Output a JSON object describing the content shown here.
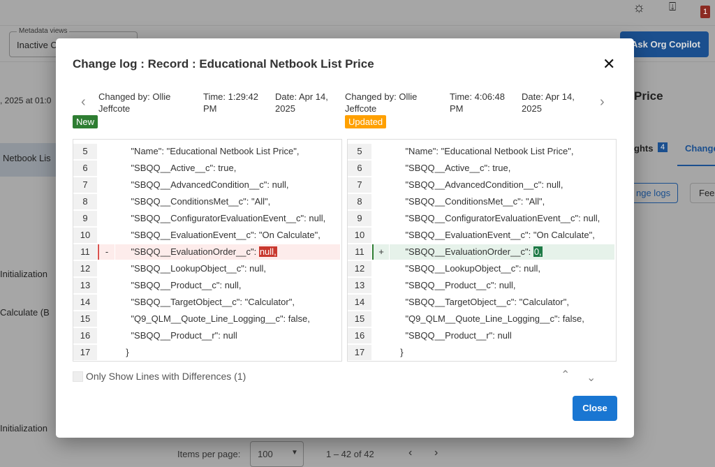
{
  "background": {
    "metadata_views_label": "Metadata views",
    "metadata_views_value": "Inactive C",
    "ask_copilot": "Ask Org Copilot",
    "notification_count": "1",
    "date_fragment": ", 2025 at 01:0",
    "left_rows": [
      "Netbook Lis",
      "Initialization",
      "Calculate (B",
      "Initialization"
    ],
    "right_title": "Price",
    "tab_insights": "ghts",
    "tab_insights_count": "4",
    "tab_change": "Change",
    "change_logs_btn": "nge logs",
    "feed_btn": "Fee",
    "items_per_page_label": "Items per page:",
    "items_per_page_value": "100",
    "range": "1 – 42 of 42"
  },
  "modal": {
    "title": "Change log : Record : Educational Netbook List Price",
    "left": {
      "changed_by": "Changed by: Ollie Jeffcote",
      "time": "Time: 1:29:42 PM",
      "date": "Date: Apr 14, 2025",
      "tag": "New",
      "tag_color": "#2e7d32"
    },
    "right": {
      "changed_by": "Changed by: Ollie Jeffcote",
      "time": "Time: 4:06:48 PM",
      "date": "Date: Apr 14, 2025",
      "tag": "Updated",
      "tag_color": "#ffa000"
    },
    "left_lines": [
      {
        "n": "5",
        "mk": "",
        "code": "    \"Name\": \"Educational Netbook List Price\","
      },
      {
        "n": "6",
        "mk": "",
        "code": "    \"SBQQ__Active__c\": true,"
      },
      {
        "n": "7",
        "mk": "",
        "code": "    \"SBQQ__AdvancedCondition__c\": null,"
      },
      {
        "n": "8",
        "mk": "",
        "code": "    \"SBQQ__ConditionsMet__c\": \"All\","
      },
      {
        "n": "9",
        "mk": "",
        "code": "    \"SBQQ__ConfiguratorEvaluationEvent__c\": null,"
      },
      {
        "n": "10",
        "mk": "",
        "code": "    \"SBQQ__EvaluationEvent__c\": \"On Calculate\","
      },
      {
        "n": "11",
        "mk": "-",
        "code": "    \"SBQQ__EvaluationOrder__c\": ",
        "hl": "null,"
      },
      {
        "n": "12",
        "mk": "",
        "code": "    \"SBQQ__LookupObject__c\": null,"
      },
      {
        "n": "13",
        "mk": "",
        "code": "    \"SBQQ__Product__c\": null,"
      },
      {
        "n": "14",
        "mk": "",
        "code": "    \"SBQQ__TargetObject__c\": \"Calculator\","
      },
      {
        "n": "15",
        "mk": "",
        "code": "    \"Q9_QLM__Quote_Line_Logging__c\": false,"
      },
      {
        "n": "16",
        "mk": "",
        "code": "    \"SBQQ__Product__r\": null"
      },
      {
        "n": "17",
        "mk": "",
        "code": "  }"
      }
    ],
    "right_lines": [
      {
        "n": "5",
        "mk": "",
        "code": "    \"Name\": \"Educational Netbook List Price\","
      },
      {
        "n": "6",
        "mk": "",
        "code": "    \"SBQQ__Active__c\": true,"
      },
      {
        "n": "7",
        "mk": "",
        "code": "    \"SBQQ__AdvancedCondition__c\": null,"
      },
      {
        "n": "8",
        "mk": "",
        "code": "    \"SBQQ__ConditionsMet__c\": \"All\","
      },
      {
        "n": "9",
        "mk": "",
        "code": "    \"SBQQ__ConfiguratorEvaluationEvent__c\": null,"
      },
      {
        "n": "10",
        "mk": "",
        "code": "    \"SBQQ__EvaluationEvent__c\": \"On Calculate\","
      },
      {
        "n": "11",
        "mk": "+",
        "code": "    \"SBQQ__EvaluationOrder__c\": ",
        "hl": "0,"
      },
      {
        "n": "12",
        "mk": "",
        "code": "    \"SBQQ__LookupObject__c\": null,"
      },
      {
        "n": "13",
        "mk": "",
        "code": "    \"SBQQ__Product__c\": null,"
      },
      {
        "n": "14",
        "mk": "",
        "code": "    \"SBQQ__TargetObject__c\": \"Calculator\","
      },
      {
        "n": "15",
        "mk": "",
        "code": "    \"Q9_QLM__Quote_Line_Logging__c\": false,"
      },
      {
        "n": "16",
        "mk": "",
        "code": "    \"SBQQ__Product__r\": null"
      },
      {
        "n": "17",
        "mk": "",
        "code": "  }"
      }
    ],
    "only_diff_label": "Only Show Lines with Differences (1)",
    "close_label": "Close"
  }
}
